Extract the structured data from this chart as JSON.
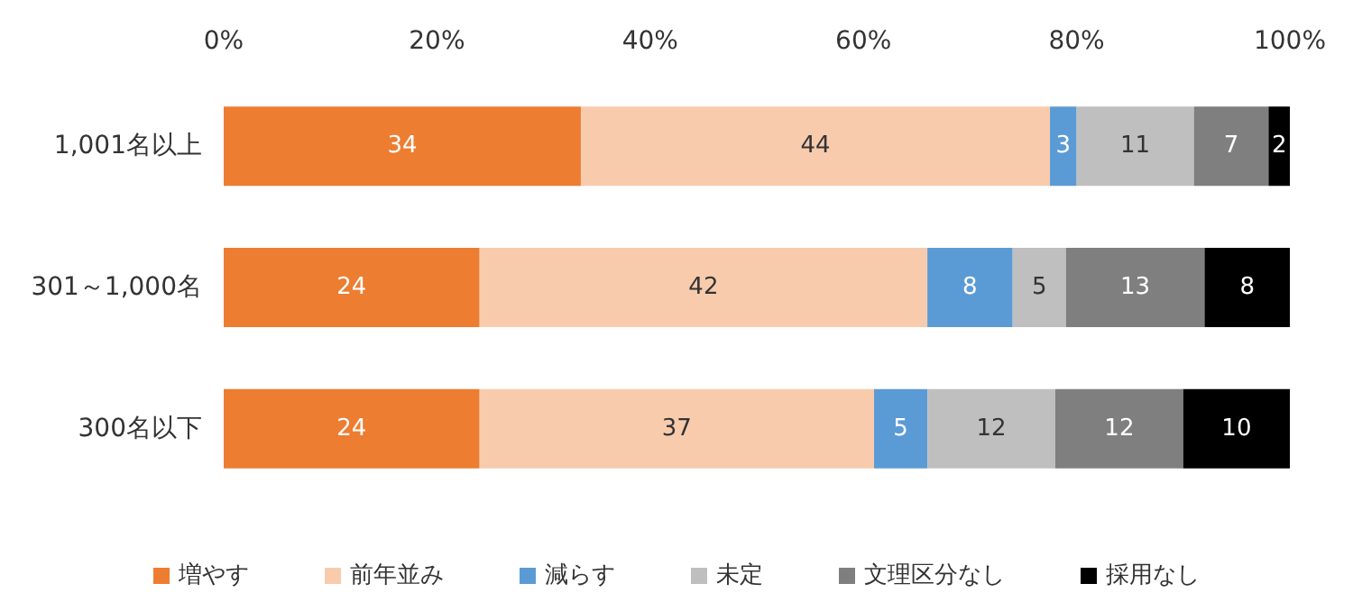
{
  "chart_data": {
    "type": "bar",
    "orientation": "horizontal",
    "stacked": true,
    "categories": [
      "1,001名以上",
      "301～1,000名",
      "300名以下"
    ],
    "series": [
      {
        "name": "増やす",
        "color": "#ed7d31",
        "values": [
          33.5,
          24,
          24
        ],
        "value_labels": [
          "34",
          "24",
          "24"
        ]
      },
      {
        "name": "前年並み",
        "color": "#f8cbad",
        "values": [
          44,
          42,
          37
        ],
        "value_labels": [
          "44",
          "42",
          "37"
        ]
      },
      {
        "name": "減らす",
        "color": "#5b9bd5",
        "values": [
          2.5,
          8,
          5
        ],
        "value_labels": [
          "3",
          "8",
          "5"
        ]
      },
      {
        "name": "未定",
        "color": "#bfbfbf",
        "values": [
          11,
          5,
          12
        ],
        "value_labels": [
          "11",
          "5",
          "12"
        ]
      },
      {
        "name": "文理区分なし",
        "color": "#7f7f7f",
        "values": [
          7,
          13,
          12
        ],
        "value_labels": [
          "7",
          "13",
          "12"
        ]
      },
      {
        "name": "採用なし",
        "color": "#000000",
        "values": [
          2,
          8,
          10
        ],
        "value_labels": [
          "2",
          "8",
          "10"
        ]
      }
    ],
    "xlim": [
      0,
      100
    ],
    "xticks": [
      {
        "value": 0,
        "label": "0%"
      },
      {
        "value": 20,
        "label": "20%"
      },
      {
        "value": 40,
        "label": "40%"
      },
      {
        "value": 60,
        "label": "60%"
      },
      {
        "value": 80,
        "label": "80%"
      },
      {
        "value": 100,
        "label": "100%"
      }
    ],
    "grid": false,
    "legend": "bottom"
  }
}
